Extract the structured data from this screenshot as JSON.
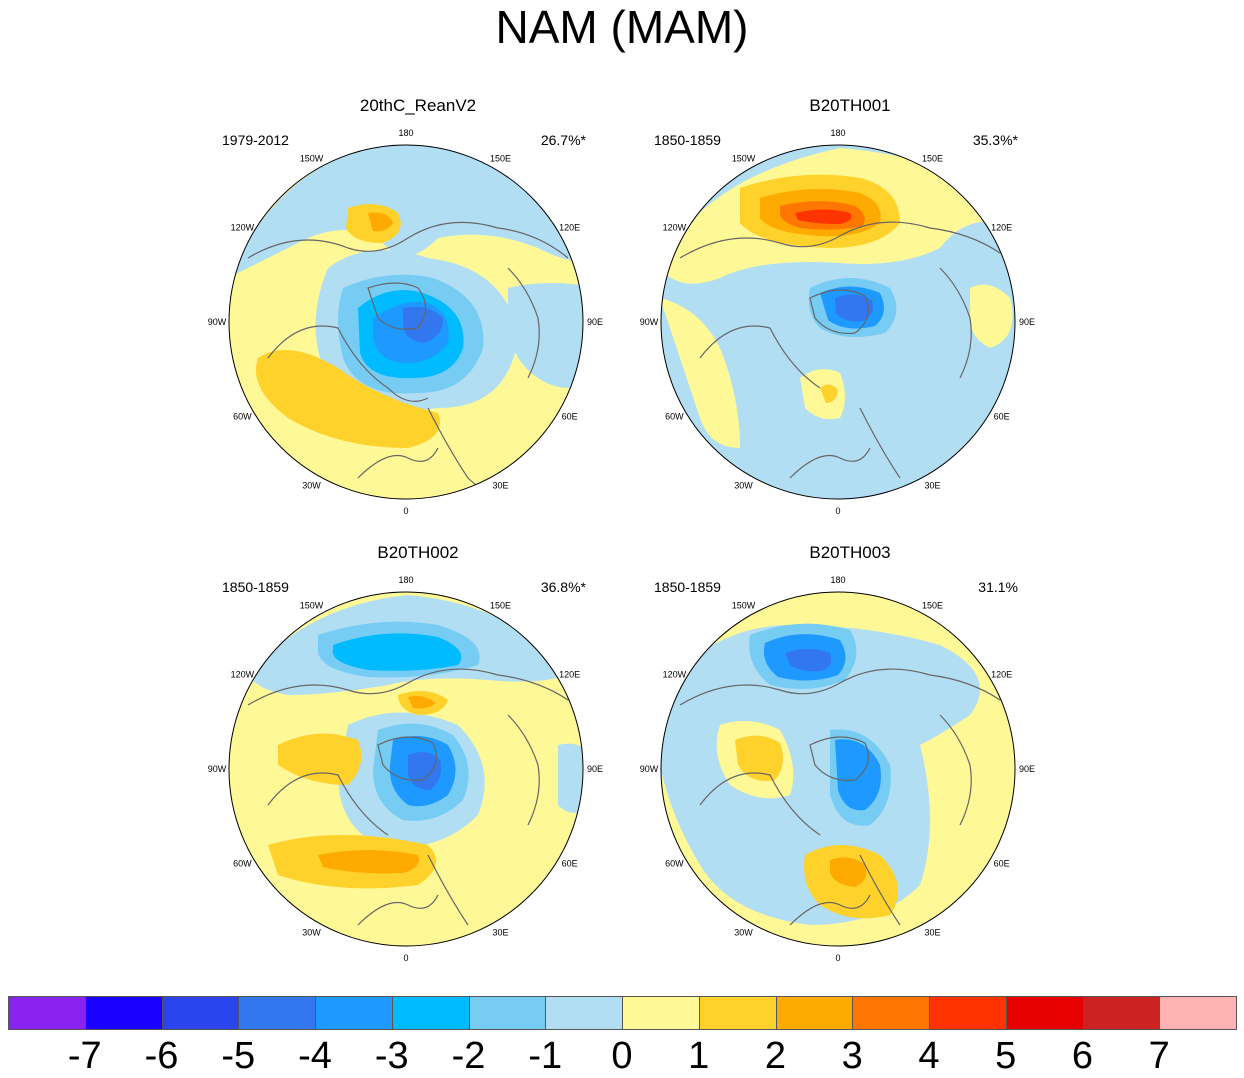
{
  "title": "NAM (MAM)",
  "lon_labels": [
    "180",
    "150E",
    "120E",
    "90E",
    "60E",
    "30E",
    "0",
    "30W",
    "60W",
    "90W",
    "120W",
    "150W"
  ],
  "panels": [
    {
      "id": "p1",
      "title": "20thC_ReanV2",
      "period": "1979-2012",
      "percent": "26.7%*"
    },
    {
      "id": "p2",
      "title": "B20TH001",
      "period": "1850-1859",
      "percent": "35.3%*"
    },
    {
      "id": "p3",
      "title": "B20TH002",
      "period": "1850-1859",
      "percent": "36.8%*"
    },
    {
      "id": "p4",
      "title": "B20TH003",
      "period": "1850-1859",
      "percent": "31.1%"
    }
  ],
  "colorbar": {
    "labels": [
      "-7",
      "-6",
      "-5",
      "-4",
      "-3",
      "-2",
      "-1",
      "0",
      "1",
      "2",
      "3",
      "4",
      "5",
      "6",
      "7"
    ],
    "colors": [
      "#8a22f0",
      "#1a00ff",
      "#2a44ee",
      "#3377ee",
      "#1e99ff",
      "#00bbff",
      "#77ccf4",
      "#b2def4",
      "#fef897",
      "#ffd12b",
      "#ffaa00",
      "#ff7700",
      "#ff3300",
      "#e60000",
      "#cc2222",
      "#ffb3b3"
    ]
  },
  "palette": {
    "land_outline": "#666666",
    "base_neg": "#b2def4",
    "base_pos": "#fef897"
  }
}
